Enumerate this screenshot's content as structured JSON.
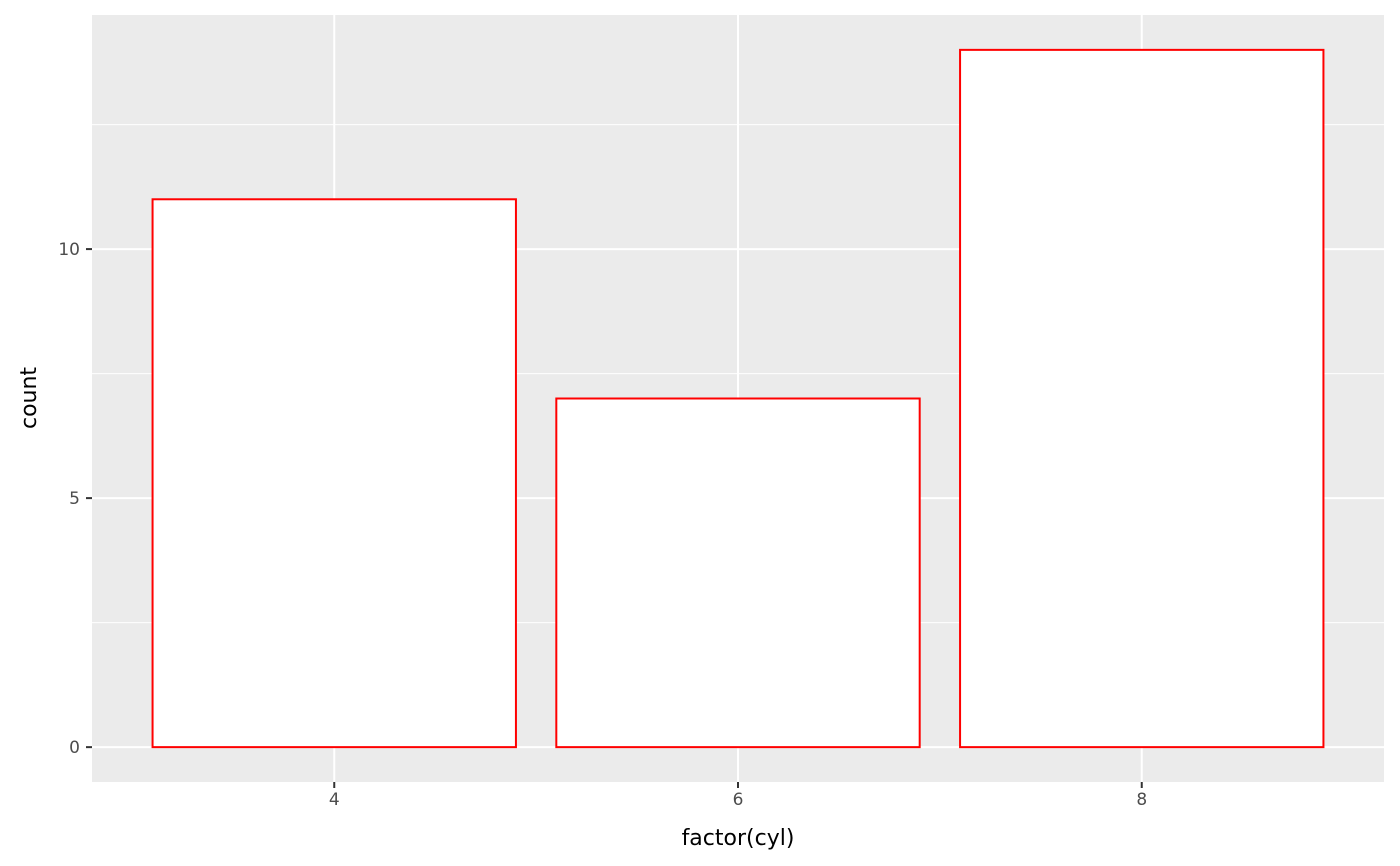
{
  "chart_data": {
    "type": "bar",
    "categories": [
      "4",
      "6",
      "8"
    ],
    "values": [
      11,
      7,
      14
    ],
    "title": "",
    "xlabel": "factor(cyl)",
    "ylabel": "count",
    "ylim": [
      -0.7,
      14.7
    ],
    "yticks": [
      0,
      5,
      10
    ],
    "ytick_labels": [
      "0",
      "5",
      "10"
    ],
    "grid": true,
    "bar_fill": "#ffffff",
    "bar_outline": "#ff0000",
    "panel_background": "#ebebeb",
    "grid_color": "#ffffff"
  }
}
